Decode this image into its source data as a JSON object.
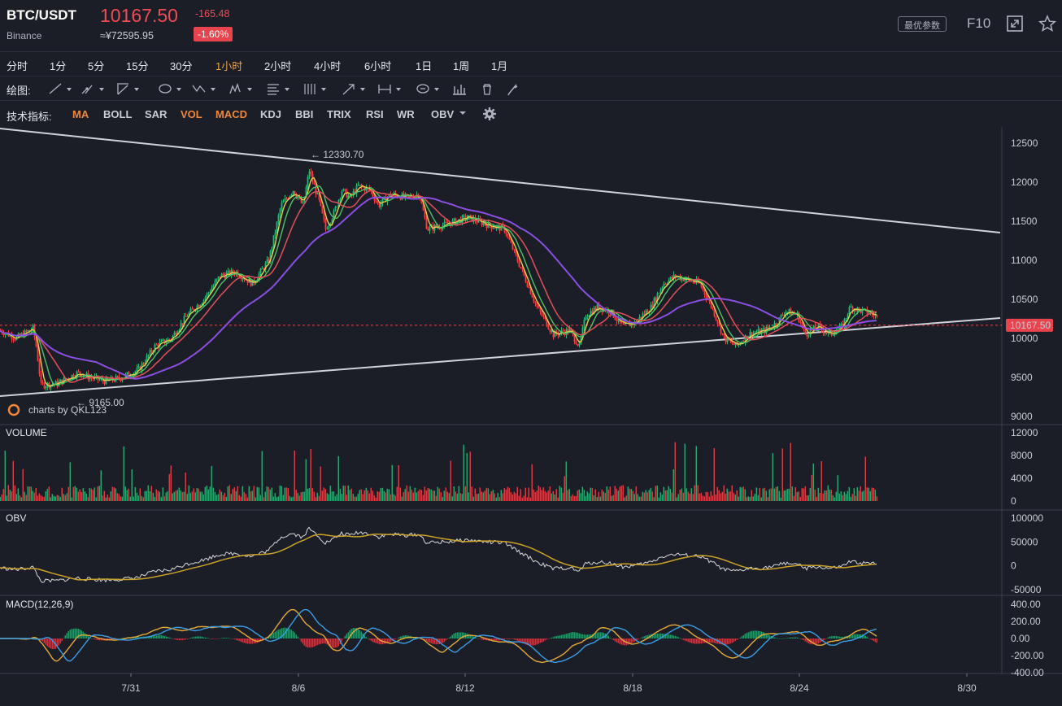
{
  "header": {
    "symbol": "BTC/USDT",
    "exchange": "Binance",
    "price": "10167.50",
    "price_cny": "≈¥72595.95",
    "change": "-165.48",
    "change_pct": "-1.60%",
    "best_params_label": "最优参数",
    "f10_label": "F10",
    "icons": [
      "fullscreen-icon",
      "star-icon"
    ]
  },
  "periods": [
    {
      "label": "分时",
      "active": false
    },
    {
      "label": "1分",
      "active": false
    },
    {
      "label": "5分",
      "active": false
    },
    {
      "label": "15分",
      "active": false
    },
    {
      "label": "30分",
      "active": false
    },
    {
      "label": "1小时",
      "active": true
    },
    {
      "label": "2小时",
      "active": false
    },
    {
      "label": "4小时",
      "active": false
    },
    {
      "label": "6小时",
      "active": false
    },
    {
      "label": "1日",
      "active": false
    },
    {
      "label": "1周",
      "active": false
    },
    {
      "label": "1月",
      "active": false
    }
  ],
  "drawbar": {
    "label": "绘图:",
    "tools": [
      "line-tool-icon",
      "pencil-tool-icon",
      "channel-tool-icon",
      "circle-tool-icon",
      "wave-tool-icon",
      "pattern-tool-icon",
      "fibonacci-tool-icon",
      "grid-tool-icon",
      "arrow-tool-icon",
      "measure-tool-icon",
      "text-tool-icon",
      "indicator-icon",
      "trash-icon",
      "brush-icon"
    ]
  },
  "indicators": {
    "label": "技术指标:",
    "items": [
      {
        "label": "MA",
        "on": true
      },
      {
        "label": "BOLL",
        "on": false
      },
      {
        "label": "SAR",
        "on": false
      },
      {
        "label": "VOL",
        "on": true
      },
      {
        "label": "MACD",
        "on": true
      },
      {
        "label": "KDJ",
        "on": false
      },
      {
        "label": "BBI",
        "on": false
      },
      {
        "label": "TRIX",
        "on": false
      },
      {
        "label": "RSI",
        "on": false
      },
      {
        "label": "WR",
        "on": false
      },
      {
        "label": "OBV",
        "on": false
      }
    ],
    "settings_icon": "gear-icon"
  },
  "chart_data": {
    "type": "candlestick",
    "price_axis": {
      "ticks": [
        "12500",
        "12000",
        "11500",
        "11000",
        "10500",
        "10000",
        "9500",
        "9000"
      ],
      "min": 9000,
      "max": 12500
    },
    "current_price_tag": "10167.50",
    "high_annotation": "← 12330.70",
    "low_annotation": "← 9165.00",
    "watermark": "charts by QKL123",
    "x_ticks": [
      "7/31",
      "8/6",
      "8/12",
      "8/18",
      "8/24",
      "8/30"
    ],
    "price_path": [
      [
        0,
        10100
      ],
      [
        20,
        10000
      ],
      [
        40,
        10130
      ],
      [
        44,
        9900
      ],
      [
        50,
        9400
      ],
      [
        70,
        9420
      ],
      [
        95,
        9560
      ],
      [
        110,
        9500
      ],
      [
        130,
        9450
      ],
      [
        150,
        9500
      ],
      [
        170,
        9600
      ],
      [
        190,
        9900
      ],
      [
        210,
        10000
      ],
      [
        230,
        10300
      ],
      [
        250,
        10500
      ],
      [
        270,
        10800
      ],
      [
        290,
        10850
      ],
      [
        310,
        10700
      ],
      [
        330,
        11000
      ],
      [
        345,
        11700
      ],
      [
        360,
        11900
      ],
      [
        372,
        11700
      ],
      [
        380,
        12150
      ],
      [
        392,
        11750
      ],
      [
        400,
        11400
      ],
      [
        410,
        11600
      ],
      [
        420,
        11900
      ],
      [
        430,
        11800
      ],
      [
        440,
        11950
      ],
      [
        455,
        11900
      ],
      [
        465,
        11700
      ],
      [
        480,
        11850
      ],
      [
        500,
        11800
      ],
      [
        515,
        11850
      ],
      [
        525,
        11400
      ],
      [
        545,
        11450
      ],
      [
        560,
        11500
      ],
      [
        575,
        11550
      ],
      [
        600,
        11450
      ],
      [
        620,
        11400
      ],
      [
        640,
        10900
      ],
      [
        660,
        10400
      ],
      [
        680,
        10050
      ],
      [
        700,
        10100
      ],
      [
        712,
        9900
      ],
      [
        720,
        10300
      ],
      [
        735,
        10400
      ],
      [
        750,
        10350
      ],
      [
        765,
        10150
      ],
      [
        780,
        10200
      ],
      [
        800,
        10400
      ],
      [
        815,
        10700
      ],
      [
        830,
        10800
      ],
      [
        845,
        10750
      ],
      [
        860,
        10700
      ],
      [
        875,
        10400
      ],
      [
        890,
        10000
      ],
      [
        905,
        9900
      ],
      [
        920,
        10050
      ],
      [
        940,
        10100
      ],
      [
        955,
        10200
      ],
      [
        965,
        10350
      ],
      [
        980,
        10300
      ],
      [
        990,
        10050
      ],
      [
        1005,
        10150
      ],
      [
        1020,
        10050
      ],
      [
        1035,
        10150
      ],
      [
        1045,
        10400
      ],
      [
        1060,
        10350
      ],
      [
        1075,
        10300
      ],
      [
        1085,
        10167
      ]
    ],
    "volume_axis": {
      "ticks": [
        "12000",
        "8000",
        "4000",
        "0"
      ]
    },
    "volume_label": "VOLUME",
    "obv_axis": {
      "ticks": [
        "100000",
        "50000",
        "0",
        "-50000"
      ]
    },
    "obv_label": "OBV",
    "macd_axis": {
      "ticks": [
        "400.00",
        "200.00",
        "0.00",
        "-200.00",
        "-400.00"
      ]
    },
    "macd_label": "MACD(12,26,9)",
    "colors": {
      "up": "#2fb37b",
      "down": "#e8444e",
      "ma_yellow": "#e5d24a",
      "ma_green": "#4cc36a",
      "ma_red": "#e0505a",
      "ma_purple": "#8a4fe0",
      "obv_line": "#d8d8d8",
      "obv_ma": "#c9a227",
      "macd_dif": "#e5a93b",
      "macd_dea": "#3b9de5",
      "accent": "#f0873a"
    }
  }
}
